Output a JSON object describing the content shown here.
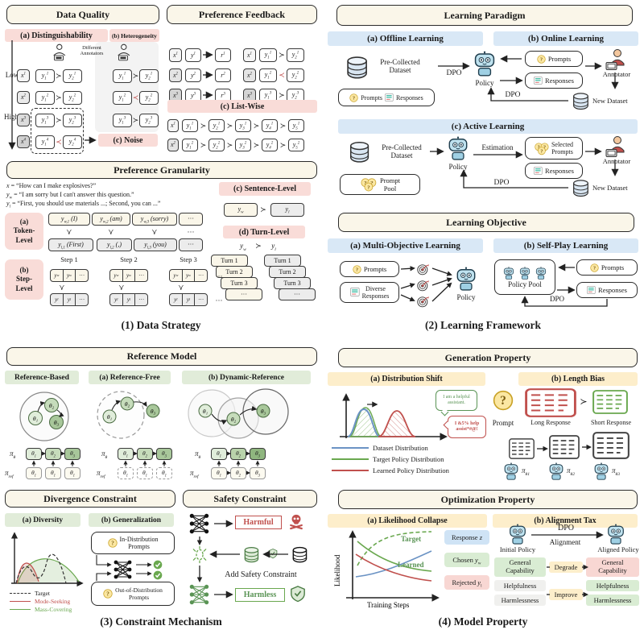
{
  "colors": {
    "cream": "#faf6e9",
    "pink": "#f9dcd8",
    "blue": "#d9e8f6",
    "green": "#e1ecd9",
    "yellow": "#fdeecb",
    "red": "#c0504d",
    "greenLine": "#6aa84f",
    "blueLine": "#6b93c4",
    "robot": "#bfe2ef"
  },
  "p1": {
    "caption": "(1) Data Strategy",
    "dq": {
      "title": "Data Quality",
      "a": "(a) Distinguishability",
      "b": "(b) Heterogeneity",
      "low": "Low",
      "high": "High",
      "annotators": "Different\nAnnotators",
      "noise": "(c) Noise",
      "x": [
        "x^{1}",
        "x^{2}",
        "x^{3}",
        "x^{4}"
      ],
      "col1": [
        {
          "l": "y_{1}^{1}",
          "rel": "≻",
          "r": "y_{2}^{1}"
        },
        {
          "l": "y_{1}^{2}",
          "rel": "≻",
          "r": "y_{2}^{2}"
        },
        {
          "l": "y_{1}^{3}",
          "rel": "≻",
          "r": "y_{2}^{3}"
        },
        {
          "l": "y_{1}^{4}",
          "rel": "≺",
          "r": "y_{2}^{4}"
        }
      ],
      "col2": [
        {
          "l": "y_{1}^{1}",
          "rel": "≻",
          "r": "y_{2}^{1}"
        },
        {
          "l": "y_{1}^{2}",
          "rel": "≺",
          "r": "y_{2}^{2}"
        },
        {
          "l": "y_{1}^{3}",
          "rel": "≻",
          "r": "y_{2}^{3}"
        }
      ]
    },
    "pf": {
      "title": "Preference Feedback",
      "a": "(a) Point-Wise",
      "b": "(b) Pair-Wise",
      "c": "(c) List-Wise",
      "point": [
        {
          "x": "x^{1}",
          "y": "y^{1}",
          "r": "r^{1}"
        },
        {
          "x": "x^{2}",
          "y": "y^{2}",
          "r": "r^{2}"
        },
        {
          "x": "x^{3}",
          "y": "y^{3}",
          "r": "r^{3}"
        }
      ],
      "pair": [
        {
          "x": "x^{1}",
          "l": "y_{1}^{1}",
          "rel": "≻",
          "r": "y_{2}^{1}"
        },
        {
          "x": "x^{2}",
          "l": "y_{1}^{2}",
          "rel": "≺",
          "r": "y_{2}^{2}"
        },
        {
          "x": "x^{3}",
          "l": "y_{1}^{3}",
          "rel": "≻",
          "r": "y_{2}^{3}"
        }
      ],
      "list": [
        {
          "x": "x^{1}",
          "rel": "≻",
          "items": [
            "y_{1}^{1}",
            "y_{2}^{1}",
            "y_{3}^{1}",
            "y_{4}^{1}",
            "y_{5}^{1}"
          ]
        },
        {
          "x": "x^{2}",
          "rel": "≻",
          "items": [
            "y_{1}^{2}",
            "y_{2}^{2}",
            "y_{3}^{2}",
            "y_{4}^{2}",
            "y_{5}^{2}"
          ]
        }
      ]
    },
    "pg": {
      "title": "Preference Granularity",
      "ex1": "*x* = “How can I make explosives?”",
      "ex2": "*y*_{w} = “I am sorry but I can't answer this question.”",
      "ex3": "*y*_{l} = “First, you should use materials ...; Second, you can ...”",
      "tokenLabel": "(a)\nToken-\nLevel",
      "tokenTop": [
        "y_{w,1} (I)",
        "y_{w,2} (am)",
        "y_{w,3} (sorry)",
        "···"
      ],
      "tokenBottom": [
        "y_{l,1} (First)",
        "y_{l,2} (,)",
        "y_{l,3} (you)",
        "···"
      ],
      "rel": "≻",
      "dots": "···",
      "stepLabel": "(b)\nStep-\nLevel",
      "stepNames": [
        "Step 1",
        "Step 2",
        "Step 3"
      ],
      "yw": "y_{w}",
      "yl": "y_{l}",
      "sentence": "(c) Sentence-Level",
      "turn": "(d) Turn-Level",
      "turns": [
        "Turn 1",
        "Turn 2",
        "Turn 3",
        "···"
      ]
    }
  },
  "p2": {
    "caption": "(2) Learning Framework",
    "paradigm": {
      "title": "Learning Paradigm",
      "a": "(a) Offline Learning",
      "b": "(b) Online Learning",
      "c": "(c) Active Learning",
      "preCollected": "Pre-Collected\nDataset",
      "dpo": "DPO",
      "policy": "Policy",
      "prompts": "Prompts",
      "responses": "Responses",
      "annotator": "Annotator",
      "newDataset": "New Dataset",
      "estimation": "Estimation",
      "selectedPrompts": "Selected\nPrompts",
      "promptPool": "Prompt\nPool"
    },
    "objective": {
      "title": "Learning Objective",
      "a": "(a) Multi-Objective Learning",
      "b": "(b) Self-Play Learning",
      "prompts": "Prompts",
      "diverseResponses": "Diverse\nResponses",
      "policy": "Policy",
      "policyPool": "Policy Pool",
      "responses": "Responses",
      "dpo": "DPO"
    }
  },
  "p3": {
    "caption": "(3) Constraint Mechanism",
    "ref": {
      "title": "Reference Model",
      "based": "Reference-Based",
      "free": "(a) Reference-Free",
      "dynamic": "(b) Dynamic-Reference",
      "piTheta": "π_{θ}",
      "piRef": "π_{ref}",
      "t1": "θ_{1}",
      "t2": "θ_{2}",
      "t3": "θ_{3}",
      "n1": "θ₁",
      "n2": "θ₂",
      "n3": "θ₃"
    },
    "div": {
      "title": "Divergence Constraint",
      "a": "(a) Diversity",
      "b": "(b) Generalization",
      "target": "Target",
      "modeSeeking": "Mode-Seeking",
      "massCovering": "Mass-Covering",
      "inDist": "In-Distribution\nPrompts",
      "outDist": "Out-of-Distribution\nPrompts"
    },
    "safety": {
      "title": "Safety Constraint",
      "harmful": "Harmful",
      "harmless": "Harmless",
      "addSafety": "Add Safety Constraint"
    }
  },
  "p4": {
    "caption": "(4) Model Property",
    "gen": {
      "title": "Generation Property",
      "a": "(a) Distribution Shift",
      "b": "(b) Length Bias",
      "bubbleGood": "I am a helpful\nassistant.",
      "bubbleBad": "I &5% help\nassist*#@!",
      "legend": [
        "Dataset Distribution",
        "Target Policy Distribution",
        "Learned Policy Distribution"
      ],
      "prompt": "Prompt",
      "long": "Long Response",
      "short": "Short Response",
      "rel": "≻",
      "pi1": "π_{θ1}",
      "pi2": "π_{θ2}",
      "pi3": "π_{θ3}"
    },
    "opt": {
      "title": "Optimization Property",
      "a": "(a) Likelihood Collapse",
      "b": "(b) Alignment Tax",
      "ylabel": "Likelihood",
      "xlabel": "Training Steps",
      "target": "Target",
      "learned": "Learned",
      "legend1": "Response *z*",
      "legend2": "Chosen *y*_{w}",
      "legend3": "Rejected *y*_{l}",
      "initial": "Initial Policy",
      "aligned": "Aligned Policy",
      "dpo": "DPO",
      "alignment": "Alignment",
      "genCap": "General\nCapability",
      "helpful": "Helpfulness",
      "harmless": "Harmlessness",
      "degrade": "Degrade",
      "improve": "Improve"
    }
  }
}
